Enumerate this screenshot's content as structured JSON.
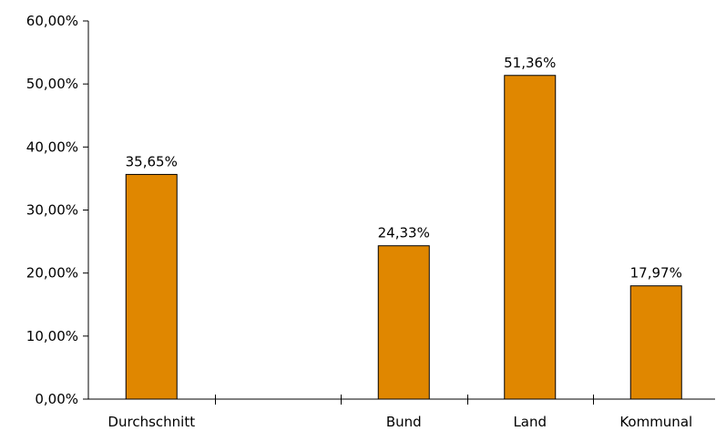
{
  "chart_data": {
    "type": "bar",
    "categories": [
      "Durchschnitt",
      "",
      "Bund",
      "Land",
      "Kommunal"
    ],
    "values": [
      35.65,
      null,
      24.33,
      51.36,
      17.97
    ],
    "data_labels": [
      "35,65%",
      "",
      "24,33%",
      "51,36%",
      "17,97%"
    ],
    "y_ticks": [
      {
        "value": 0,
        "label": "0,00%"
      },
      {
        "value": 10,
        "label": "10,00%"
      },
      {
        "value": 20,
        "label": "20,00%"
      },
      {
        "value": 30,
        "label": "30,00%"
      },
      {
        "value": 40,
        "label": "40,00%"
      },
      {
        "value": 50,
        "label": "50,00%"
      },
      {
        "value": 60,
        "label": "60,00%"
      }
    ],
    "ylim": [
      0,
      60
    ],
    "title": "",
    "xlabel": "",
    "ylabel": "",
    "grid": false,
    "legend": "none",
    "bar_color": "#E08700"
  }
}
